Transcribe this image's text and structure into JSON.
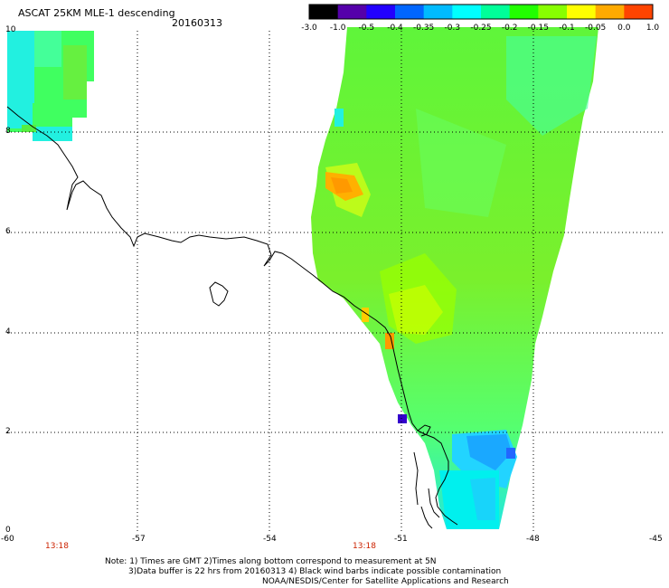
{
  "header": {
    "title": "ASCAT 25KM MLE-1 descending",
    "date": "20160313"
  },
  "colorbar": {
    "labels": [
      "-3.0",
      "-1.0",
      "-0.5",
      "-0.4",
      "-0.35",
      "-0.3",
      "-0.25",
      "-0.2",
      "-0.15",
      "-0.1",
      "-0.05",
      "0.0",
      "1.0"
    ],
    "colors": [
      "#000000",
      "#5500aa",
      "#2200ff",
      "#0066ff",
      "#00bbff",
      "#00ffff",
      "#00ff99",
      "#22ff00",
      "#88ff00",
      "#ffff00",
      "#ffaa00",
      "#ff4400"
    ]
  },
  "axes": {
    "y_labels": [
      "10",
      "8",
      "6",
      "4",
      "2",
      "0"
    ],
    "x_labels": [
      "-60",
      "-57",
      "-54",
      "-51",
      "-48",
      "-45"
    ]
  },
  "pass_times": [
    "13:18",
    "13:18"
  ],
  "notes": {
    "line1": "Note: 1) Times are GMT 2)Times along bottom correspond to measurement at 5N",
    "line2": "3)Data buffer is 22 hrs from 20160313 4) Black wind barbs indicate possible contamination",
    "line3": "NOAA/NESDIS/Center for Satellite Applications and Research"
  },
  "colors": {
    "time_label": "#cc2200",
    "grid": "#000000"
  }
}
